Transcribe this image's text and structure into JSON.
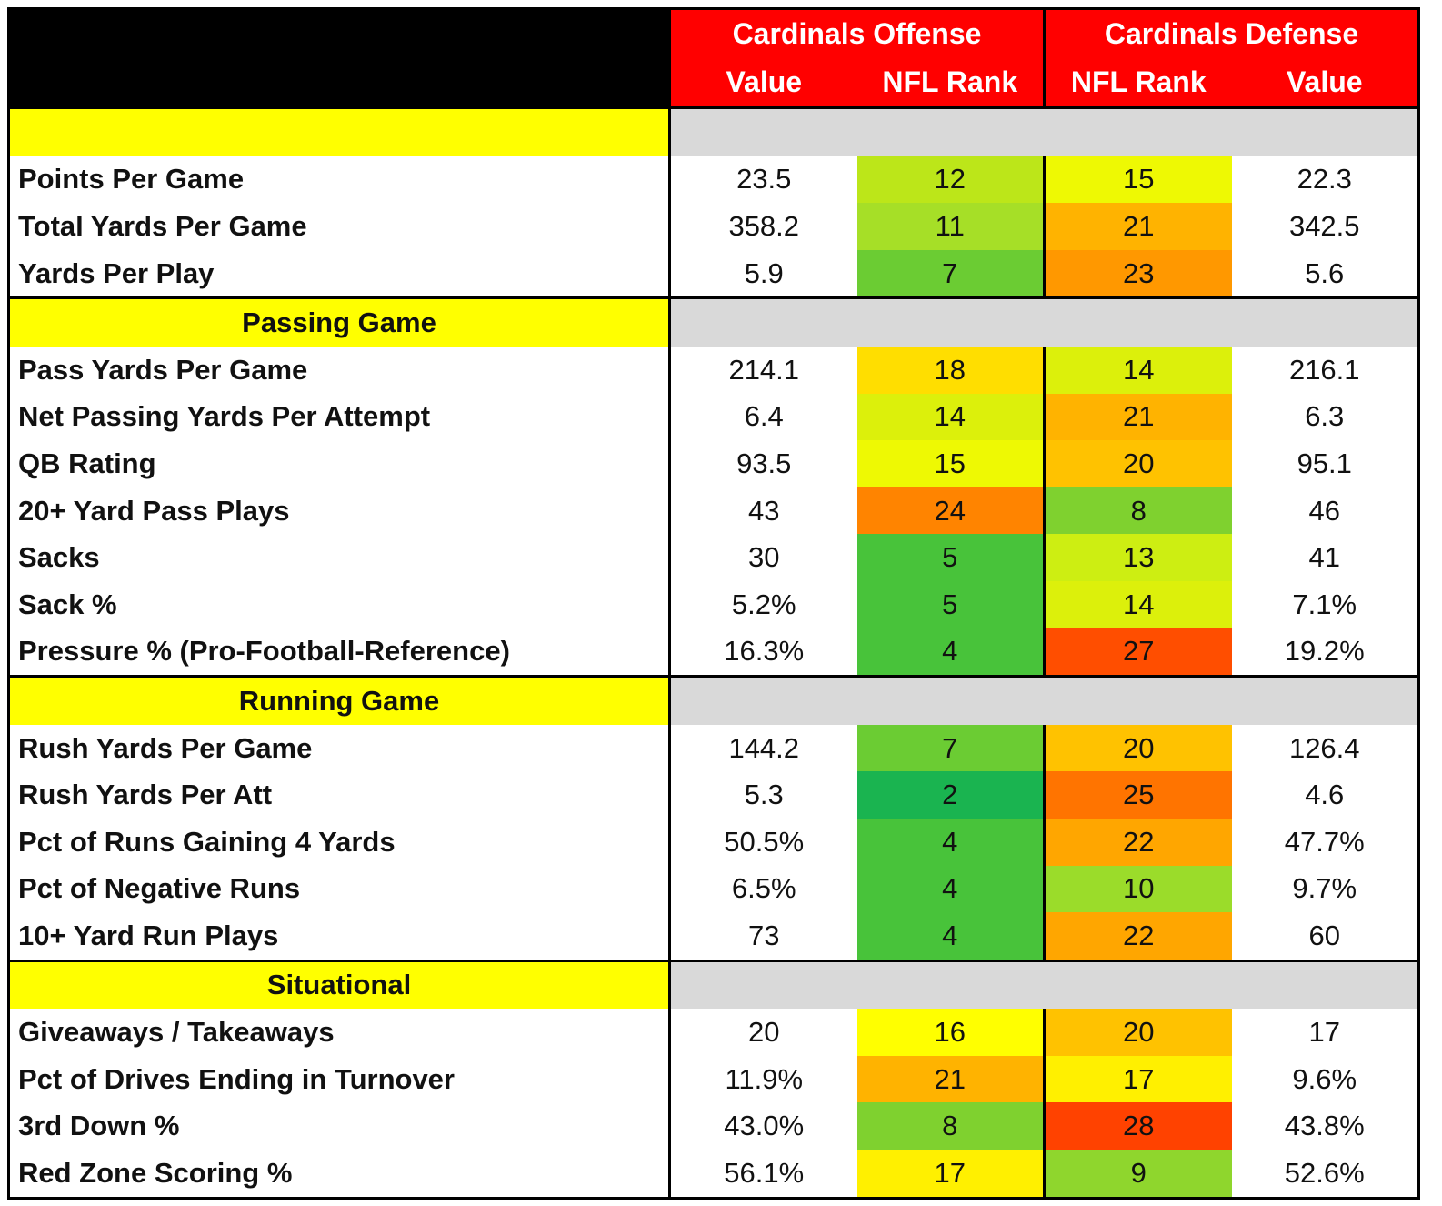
{
  "header": {
    "offense_title": "Cardinals Offense",
    "defense_title": "Cardinals Defense",
    "offense_value": "Value",
    "offense_rank": "NFL Rank",
    "defense_rank": "NFL Rank",
    "defense_value": "Value"
  },
  "colors": {
    "header_bg": "#ff0000",
    "section_bg": "#ffff00",
    "gray_band": "#d9d9d9",
    "rank_scale": {
      "2": "#1ab450",
      "4": "#48c33a",
      "5": "#48c33a",
      "7": "#6bcc33",
      "8": "#7fd12f",
      "9": "#8fd62d",
      "10": "#9bdc2a",
      "11": "#a6df27",
      "12": "#bce619",
      "13": "#cdee12",
      "14": "#dcf00b",
      "15": "#eef903",
      "16": "#ffff00",
      "17": "#fff000",
      "18": "#ffde00",
      "20": "#ffc200",
      "21": "#ffb300",
      "22": "#ffa600",
      "23": "#ff9800",
      "24": "#ff8400",
      "25": "#ff7400",
      "27": "#ff4e00",
      "28": "#ff4200"
    }
  },
  "sections": [
    {
      "title": "",
      "rows": [
        {
          "label": "Points Per Game",
          "off_value": "23.5",
          "off_rank": "12",
          "def_rank": "15",
          "def_value": "22.3"
        },
        {
          "label": "Total Yards Per Game",
          "off_value": "358.2",
          "off_rank": "11",
          "def_rank": "21",
          "def_value": "342.5"
        },
        {
          "label": "Yards Per Play",
          "off_value": "5.9",
          "off_rank": "7",
          "def_rank": "23",
          "def_value": "5.6"
        }
      ]
    },
    {
      "title": "Passing Game",
      "rows": [
        {
          "label": "Pass Yards Per Game",
          "off_value": "214.1",
          "off_rank": "18",
          "def_rank": "14",
          "def_value": "216.1"
        },
        {
          "label": "Net Passing Yards Per Attempt",
          "off_value": "6.4",
          "off_rank": "14",
          "def_rank": "21",
          "def_value": "6.3"
        },
        {
          "label": "QB Rating",
          "off_value": "93.5",
          "off_rank": "15",
          "def_rank": "20",
          "def_value": "95.1"
        },
        {
          "label": "20+ Yard Pass Plays",
          "off_value": "43",
          "off_rank": "24",
          "def_rank": "8",
          "def_value": "46"
        },
        {
          "label": "Sacks",
          "off_value": "30",
          "off_rank": "5",
          "def_rank": "13",
          "def_value": "41"
        },
        {
          "label": "Sack %",
          "off_value": "5.2%",
          "off_rank": "5",
          "def_rank": "14",
          "def_value": "7.1%"
        },
        {
          "label": "Pressure % (Pro-Football-Reference)",
          "off_value": "16.3%",
          "off_rank": "4",
          "def_rank": "27",
          "def_value": "19.2%"
        }
      ]
    },
    {
      "title": "Running Game",
      "rows": [
        {
          "label": "Rush Yards Per Game",
          "off_value": "144.2",
          "off_rank": "7",
          "def_rank": "20",
          "def_value": "126.4"
        },
        {
          "label": "Rush Yards Per Att",
          "off_value": "5.3",
          "off_rank": "2",
          "def_rank": "25",
          "def_value": "4.6"
        },
        {
          "label": "Pct of Runs Gaining 4 Yards",
          "off_value": "50.5%",
          "off_rank": "4",
          "def_rank": "22",
          "def_value": "47.7%"
        },
        {
          "label": "Pct of Negative Runs",
          "off_value": "6.5%",
          "off_rank": "4",
          "def_rank": "10",
          "def_value": "9.7%"
        },
        {
          "label": "10+ Yard Run Plays",
          "off_value": "73",
          "off_rank": "4",
          "def_rank": "22",
          "def_value": "60"
        }
      ]
    },
    {
      "title": "Situational",
      "rows": [
        {
          "label": "Giveaways / Takeaways",
          "off_value": "20",
          "off_rank": "16",
          "def_rank": "20",
          "def_value": "17"
        },
        {
          "label": "Pct of Drives Ending in Turnover",
          "off_value": "11.9%",
          "off_rank": "21",
          "def_rank": "17",
          "def_value": "9.6%"
        },
        {
          "label": "3rd Down %",
          "off_value": "43.0%",
          "off_rank": "8",
          "def_rank": "28",
          "def_value": "43.8%"
        },
        {
          "label": "Red Zone Scoring %",
          "off_value": "56.1%",
          "off_rank": "17",
          "def_rank": "9",
          "def_value": "52.6%"
        }
      ]
    }
  ]
}
